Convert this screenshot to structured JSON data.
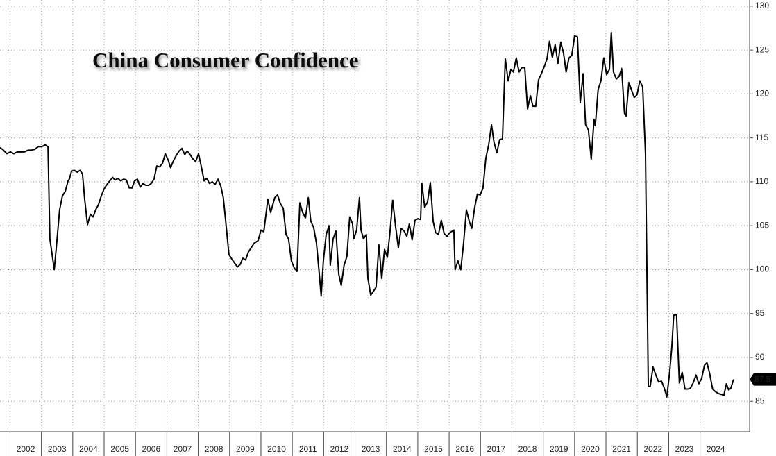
{
  "chart_data": {
    "type": "line",
    "title": "China Consumer Confidence",
    "color": "#000000",
    "grid": true,
    "xlim": [
      2001.68,
      2025.58
    ],
    "ylim": [
      81.7,
      130.7
    ],
    "xticks": [
      2002,
      2003,
      2004,
      2005,
      2006,
      2007,
      2008,
      2009,
      2010,
      2011,
      2012,
      2013,
      2014,
      2015,
      2016,
      2017,
      2018,
      2019,
      2020,
      2021,
      2022,
      2023,
      2024
    ],
    "yticks": [
      85,
      90,
      95,
      100,
      105,
      110,
      115,
      120,
      125,
      130
    ],
    "x": [
      2001.68,
      2001.79,
      2001.9,
      2002.01,
      2002.12,
      2002.23,
      2002.34,
      2002.46,
      2002.57,
      2002.68,
      2002.79,
      2002.9,
      2003.01,
      2003.12,
      2003.21,
      2003.27,
      2003.41,
      2003.5,
      2003.58,
      2003.67,
      2003.76,
      2003.85,
      2003.89,
      2003.96,
      2004.05,
      2004.14,
      2004.23,
      2004.31,
      2004.38,
      2004.47,
      2004.56,
      2004.65,
      2004.73,
      2004.82,
      2004.91,
      2005.0,
      2005.09,
      2005.18,
      2005.27,
      2005.35,
      2005.44,
      2005.53,
      2005.62,
      2005.71,
      2005.8,
      2005.89,
      2005.97,
      2006.06,
      2006.15,
      2006.24,
      2006.33,
      2006.42,
      2006.5,
      2006.59,
      2006.68,
      2006.77,
      2006.86,
      2006.95,
      2007.04,
      2007.12,
      2007.21,
      2007.3,
      2007.39,
      2007.48,
      2007.57,
      2007.65,
      2007.74,
      2007.83,
      2007.92,
      2008.01,
      2008.1,
      2008.19,
      2008.27,
      2008.36,
      2008.45,
      2008.54,
      2008.63,
      2008.72,
      2008.8,
      2008.89,
      2008.98,
      2009.11,
      2009.25,
      2009.34,
      2009.42,
      2009.51,
      2009.6,
      2009.69,
      2009.78,
      2009.91,
      2010.0,
      2010.09,
      2010.22,
      2010.31,
      2010.44,
      2010.53,
      2010.62,
      2010.71,
      2010.8,
      2010.88,
      2010.97,
      2011.06,
      2011.15,
      2011.24,
      2011.33,
      2011.42,
      2011.51,
      2011.59,
      2011.68,
      2011.77,
      2011.86,
      2011.92,
      2011.99,
      2012.08,
      2012.17,
      2012.21,
      2012.3,
      2012.39,
      2012.48,
      2012.56,
      2012.65,
      2012.74,
      2012.83,
      2012.92,
      2012.96,
      2013.05,
      2013.14,
      2013.19,
      2013.27,
      2013.36,
      2013.41,
      2013.5,
      2013.58,
      2013.67,
      2013.76,
      2013.85,
      2013.94,
      2014.03,
      2014.12,
      2014.2,
      2014.29,
      2014.38,
      2014.47,
      2014.56,
      2014.65,
      2014.73,
      2014.82,
      2014.91,
      2015.0,
      2015.09,
      2015.13,
      2015.22,
      2015.31,
      2015.4,
      2015.49,
      2015.57,
      2015.66,
      2015.75,
      2015.84,
      2015.93,
      2016.02,
      2016.15,
      2016.19,
      2016.28,
      2016.37,
      2016.46,
      2016.55,
      2016.64,
      2016.72,
      2016.81,
      2016.9,
      2016.99,
      2017.08,
      2017.17,
      2017.26,
      2017.35,
      2017.43,
      2017.52,
      2017.61,
      2017.7,
      2017.79,
      2017.88,
      2017.97,
      2018.05,
      2018.14,
      2018.23,
      2018.32,
      2018.41,
      2018.5,
      2018.59,
      2018.67,
      2018.76,
      2018.85,
      2018.94,
      2019.03,
      2019.12,
      2019.2,
      2019.29,
      2019.38,
      2019.47,
      2019.56,
      2019.65,
      2019.73,
      2019.82,
      2019.91,
      2020.0,
      2020.09,
      2020.18,
      2020.27,
      2020.35,
      2020.44,
      2020.53,
      2020.62,
      2020.66,
      2020.75,
      2020.84,
      2020.93,
      2021.02,
      2021.11,
      2021.17,
      2021.24,
      2021.33,
      2021.42,
      2021.5,
      2021.59,
      2021.64,
      2021.73,
      2021.81,
      2021.9,
      2021.99,
      2022.08,
      2022.17,
      2022.26,
      2022.35,
      2022.41,
      2022.5,
      2022.59,
      2022.68,
      2022.77,
      2022.86,
      2022.94,
      2023.03,
      2023.1,
      2023.16,
      2023.25,
      2023.34,
      2023.43,
      2023.52,
      2023.61,
      2023.69,
      2023.78,
      2023.87,
      2023.96,
      2024.05,
      2024.14,
      2024.22,
      2024.31,
      2024.4,
      2024.49,
      2024.58,
      2024.67,
      2024.76,
      2024.84,
      2024.91,
      2024.98,
      2025.07
    ],
    "values": [
      113.9,
      113.6,
      113.2,
      113.4,
      113.2,
      113.4,
      113.4,
      113.4,
      113.6,
      113.6,
      113.7,
      114.0,
      114.0,
      114.2,
      114.0,
      103.5,
      100.0,
      103.5,
      106.8,
      108.4,
      108.9,
      110.1,
      110.3,
      111.2,
      111.3,
      111.1,
      111.3,
      110.9,
      108.0,
      105.1,
      106.3,
      106.0,
      106.8,
      107.4,
      108.4,
      109.2,
      109.7,
      110.1,
      110.5,
      110.2,
      110.4,
      110.1,
      110.3,
      110.2,
      109.3,
      109.3,
      110.1,
      110.3,
      109.4,
      109.8,
      109.6,
      109.6,
      109.8,
      110.3,
      111.8,
      111.7,
      112.1,
      113.2,
      112.5,
      111.6,
      112.4,
      113.0,
      113.5,
      113.8,
      113.1,
      113.5,
      113.1,
      112.6,
      112.3,
      113.2,
      111.7,
      110.1,
      110.4,
      109.8,
      110.0,
      109.7,
      110.3,
      109.5,
      108.2,
      105.0,
      101.7,
      101.0,
      100.3,
      100.6,
      101.3,
      101.1,
      102.0,
      102.5,
      103.0,
      103.3,
      104.5,
      104.3,
      108.0,
      106.5,
      108.2,
      108.5,
      107.5,
      107.0,
      104.0,
      103.5,
      101.0,
      100.2,
      99.8,
      107.6,
      106.5,
      105.9,
      108.2,
      105.5,
      104.8,
      103.0,
      99.5,
      97.0,
      101.0,
      104.0,
      105.0,
      100.5,
      103.5,
      104.4,
      99.5,
      98.2,
      100.5,
      101.5,
      106.0,
      105.2,
      103.5,
      104.5,
      108.2,
      104.5,
      103.5,
      104.0,
      99.0,
      97.1,
      97.5,
      98.0,
      102.8,
      99.0,
      102.3,
      101.4,
      104.5,
      107.9,
      105.0,
      102.5,
      104.7,
      104.4,
      103.8,
      105.2,
      103.4,
      105.6,
      105.8,
      105.7,
      109.8,
      107.1,
      107.7,
      109.9,
      105.5,
      104.2,
      104.0,
      105.6,
      104.1,
      103.8,
      104.2,
      104.5,
      100.0,
      101.0,
      100.0,
      103.0,
      106.8,
      105.5,
      104.7,
      107.0,
      108.6,
      108.5,
      109.3,
      112.7,
      114.2,
      116.5,
      114.5,
      113.3,
      114.8,
      114.9,
      124.0,
      121.5,
      122.8,
      122.5,
      124.1,
      122.5,
      123.0,
      123.0,
      118.3,
      119.8,
      118.6,
      118.6,
      121.6,
      122.3,
      123.1,
      124.0,
      126.0,
      124.2,
      125.6,
      123.5,
      125.9,
      124.6,
      122.5,
      124.1,
      124.4,
      126.6,
      126.5,
      119.0,
      122.3,
      116.5,
      115.9,
      112.6,
      117.1,
      116.4,
      120.5,
      121.5,
      124.1,
      122.2,
      122.8,
      127.0,
      122.5,
      121.7,
      122.0,
      122.9,
      117.8,
      117.5,
      121.3,
      120.5,
      119.6,
      119.9,
      121.5,
      120.8,
      113.2,
      86.7,
      86.7,
      88.9,
      88.0,
      87.2,
      87.3,
      86.5,
      85.5,
      88.3,
      91.2,
      94.8,
      94.9,
      87.1,
      88.3,
      86.4,
      86.4,
      86.5,
      87.1,
      88.0,
      87.0,
      87.6,
      89.1,
      89.4,
      88.1,
      86.4,
      86.1,
      85.9,
      85.8,
      85.7,
      87.0,
      86.3,
      86.5,
      87.5
    ]
  }
}
